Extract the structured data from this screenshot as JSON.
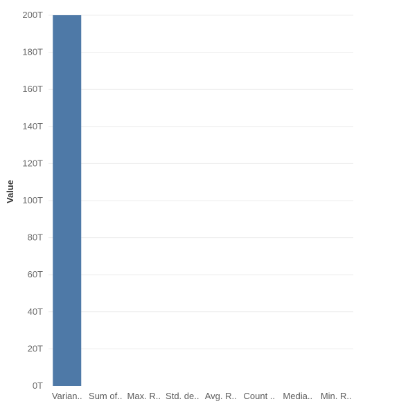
{
  "chart_data": {
    "type": "bar",
    "ylabel": "Value",
    "xlabel": "",
    "categories": [
      "Varian..",
      "Sum of..",
      "Max. R..",
      "Std. de..",
      "Avg. R..",
      "Count ..",
      "Media..",
      "Min. R.."
    ],
    "values": [
      200,
      0,
      0,
      0,
      0,
      0,
      0,
      0
    ],
    "value_unit": "T",
    "ylim": [
      0,
      200
    ],
    "yticks": [
      0,
      20,
      40,
      60,
      80,
      100,
      120,
      140,
      160,
      180,
      200
    ],
    "ytick_labels": [
      "0T",
      "20T",
      "40T",
      "60T",
      "80T",
      "100T",
      "120T",
      "140T",
      "160T",
      "180T",
      "200T"
    ],
    "grid": true,
    "bar_color": "#4e79a7"
  }
}
